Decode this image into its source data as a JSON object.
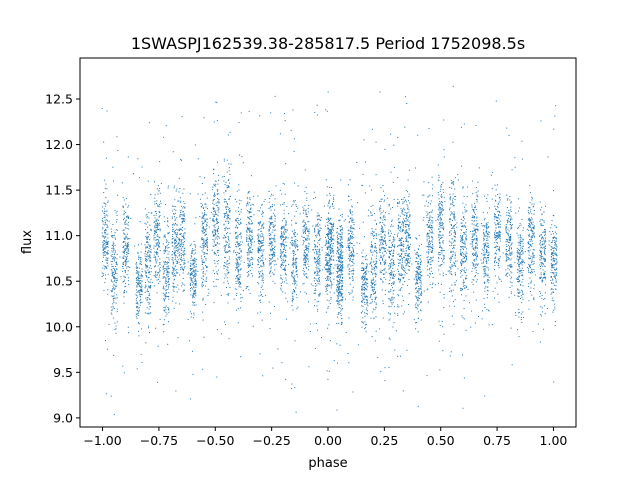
{
  "chart_data": {
    "type": "scatter",
    "title": "1SWASPJ162539.38-285817.5 Period 1752098.5s",
    "xlabel": "phase",
    "ylabel": "flux",
    "xlim": [
      -1.1,
      1.1
    ],
    "ylim": [
      8.9,
      12.95
    ],
    "x_ticks": [
      -1.0,
      -0.75,
      -0.5,
      -0.25,
      0.0,
      0.25,
      0.5,
      0.75,
      1.0
    ],
    "x_tick_labels": [
      "−1.00",
      "−0.75",
      "−0.50",
      "−0.25",
      "0.00",
      "0.25",
      "0.50",
      "0.75",
      "1.00"
    ],
    "y_ticks": [
      9.0,
      9.5,
      10.0,
      10.5,
      11.0,
      11.5,
      12.0,
      12.5
    ],
    "y_tick_labels": [
      "9.0",
      "9.5",
      "10.0",
      "10.5",
      "11.0",
      "11.5",
      "12.0",
      "12.5"
    ],
    "grid": false,
    "legend": "none",
    "marker_color": "#1f77b4",
    "series": [
      {
        "phase_range": [
          -1.0,
          1.0
        ],
        "folded_twice": true,
        "clusters": [
          {
            "phase": -0.99,
            "center": 10.95,
            "spread": 0.45
          },
          {
            "phase": -0.95,
            "center": 10.6,
            "spread": 0.5
          },
          {
            "phase": -0.9,
            "center": 10.85,
            "spread": 0.45
          },
          {
            "phase": -0.84,
            "center": 10.45,
            "spread": 0.35
          },
          {
            "phase": -0.8,
            "center": 10.65,
            "spread": 0.55
          },
          {
            "phase": -0.76,
            "center": 10.95,
            "spread": 0.45
          },
          {
            "phase": -0.72,
            "center": 10.6,
            "spread": 0.55
          },
          {
            "phase": -0.68,
            "center": 10.9,
            "spread": 0.5
          },
          {
            "phase": -0.65,
            "center": 11.0,
            "spread": 0.45
          },
          {
            "phase": -0.6,
            "center": 10.55,
            "spread": 0.35
          },
          {
            "phase": -0.55,
            "center": 10.95,
            "spread": 0.45
          },
          {
            "phase": -0.5,
            "center": 11.1,
            "spread": 0.5
          },
          {
            "phase": -0.45,
            "center": 11.0,
            "spread": 0.7
          },
          {
            "phase": -0.4,
            "center": 10.8,
            "spread": 0.5
          },
          {
            "phase": -0.35,
            "center": 11.0,
            "spread": 0.45
          },
          {
            "phase": -0.3,
            "center": 10.85,
            "spread": 0.45
          },
          {
            "phase": -0.25,
            "center": 11.0,
            "spread": 0.45
          },
          {
            "phase": -0.2,
            "center": 10.9,
            "spread": 0.45
          },
          {
            "phase": -0.15,
            "center": 10.7,
            "spread": 0.45
          },
          {
            "phase": -0.1,
            "center": 10.95,
            "spread": 0.45
          },
          {
            "phase": -0.05,
            "center": 10.8,
            "spread": 0.45
          },
          {
            "phase": 0.0,
            "center": 10.75,
            "spread": 0.45
          },
          {
            "phase": 0.05,
            "center": 10.6,
            "spread": 0.45
          }
        ]
      }
    ]
  }
}
